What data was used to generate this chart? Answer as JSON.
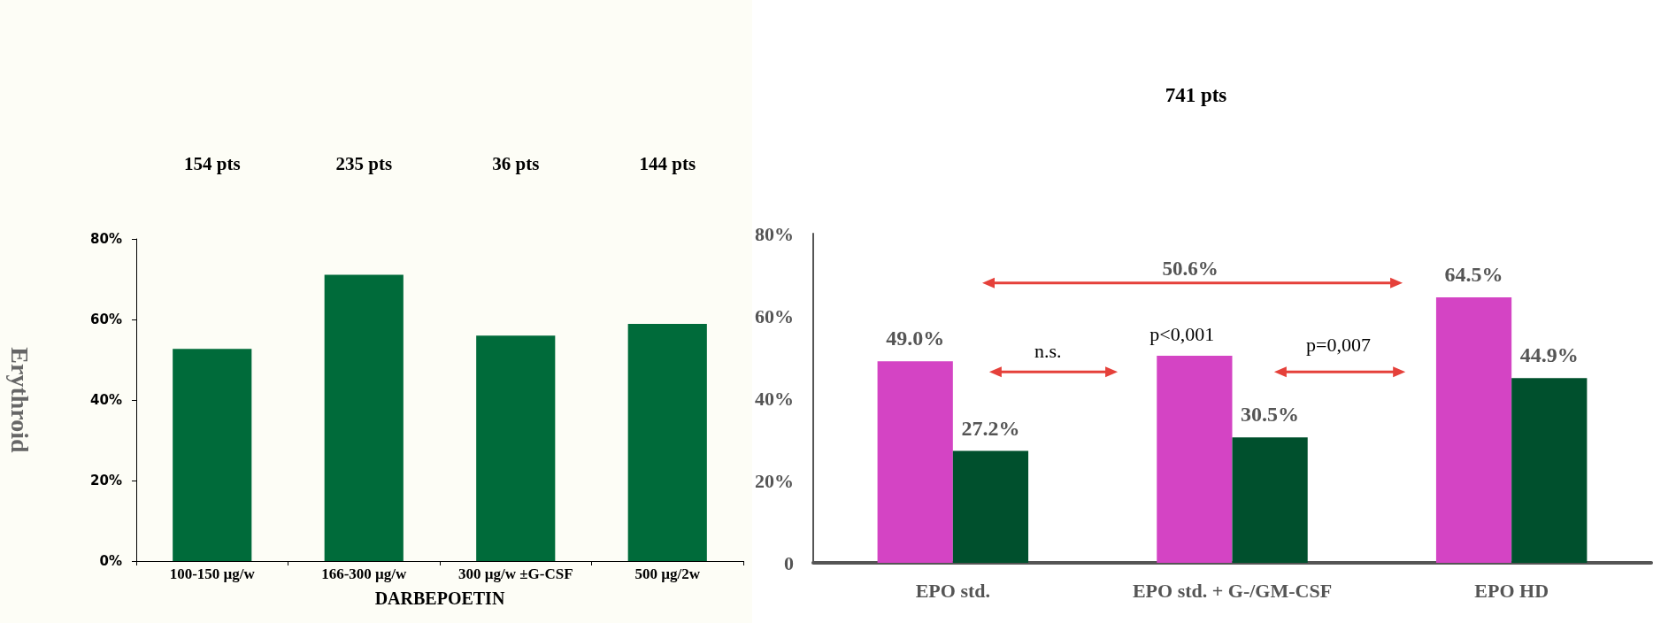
{
  "chart_data": [
    {
      "type": "bar",
      "ylabel": "Erythroid",
      "xlabel": "DARBEPOETIN",
      "categories": [
        "100-150 µg/w",
        "166-300 µg/w",
        "300 µg/w ±G-CSF",
        "500 µg/2w"
      ],
      "values": [
        52.7,
        71.1,
        56.0,
        58.9
      ],
      "color": "#006b3a",
      "ylim": [
        0,
        80
      ],
      "yticks": [
        {
          "value": 0,
          "label": "0%"
        },
        {
          "value": 20,
          "label": "20%"
        },
        {
          "value": 40,
          "label": "40%"
        },
        {
          "value": 60,
          "label": "60%"
        },
        {
          "value": 80,
          "label": "80%"
        }
      ],
      "annotations": [
        "154 pts",
        "235 pts",
        "36 pts",
        "144 pts"
      ]
    },
    {
      "type": "bar",
      "categories": [
        "EPO std.",
        "EPO std. + G-/GM-CSF",
        "EPO HD"
      ],
      "ylim": [
        0,
        80
      ],
      "yticks": [
        0,
        {
          "value": 20,
          "label": "20%"
        },
        {
          "value": 40,
          "label": "40%"
        },
        {
          "value": 60,
          "label": "60%"
        },
        {
          "value": 80,
          "label": "80%"
        }
      ],
      "series": [
        {
          "color": "#d444c4",
          "values": [
            49.0,
            50.3,
            64.5
          ],
          "value_labels": [
            "49.0%",
            null,
            "64.5%"
          ]
        },
        {
          "color": "#00502d",
          "values": [
            27.2,
            30.5,
            44.9
          ],
          "value_labels": [
            "27.2%",
            "30.5%",
            "44.9%"
          ]
        }
      ],
      "annotations": [
        "741 pts",
        "50.6%",
        "n.s.",
        "p<0,001",
        "p=0,007"
      ]
    }
  ]
}
